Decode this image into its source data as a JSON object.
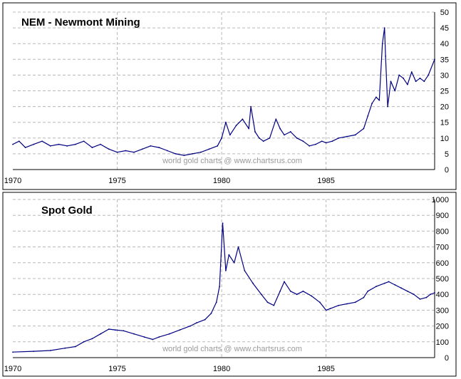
{
  "chart_data": [
    {
      "type": "line",
      "title": "NEM - Newmont Mining",
      "watermark": "world gold charts @ www.chartsrus.com",
      "x_ticks": [
        "1970",
        "1975",
        "1980",
        "1985"
      ],
      "y_ticks": [
        "0",
        "5",
        "10",
        "15",
        "20",
        "25",
        "30",
        "35",
        "40",
        "45",
        "50"
      ],
      "xlim": [
        1970.0,
        1990.2
      ],
      "ylim": [
        0,
        50
      ],
      "grid": true,
      "line_color": "#000080",
      "series": [
        {
          "x": [
            1970.0,
            1970.3,
            1970.6,
            1971.0,
            1971.4,
            1971.8,
            1972.2,
            1972.6,
            1973.0,
            1973.4,
            1973.8,
            1974.2,
            1974.6,
            1975.0,
            1975.4,
            1975.8,
            1976.2,
            1976.6,
            1977.0,
            1977.4,
            1977.8,
            1978.2,
            1978.6,
            1979.0,
            1979.4,
            1979.8,
            1980.0,
            1980.2,
            1980.4,
            1980.7,
            1981.0,
            1981.3,
            1981.4,
            1981.6,
            1981.8,
            1982.0,
            1982.3,
            1982.6,
            1982.8,
            1983.0,
            1983.3,
            1983.6,
            1983.9,
            1984.2,
            1984.5,
            1984.8,
            1985.0,
            1985.3,
            1985.6,
            1986.0,
            1986.4,
            1986.8,
            1987.0,
            1987.2,
            1987.4,
            1987.55,
            1987.7,
            1987.8,
            1987.85,
            1987.95,
            1988.1,
            1988.3,
            1988.5,
            1988.7,
            1988.9,
            1989.1,
            1989.3,
            1989.5,
            1989.7,
            1989.9,
            1990.2
          ],
          "y": [
            8,
            9,
            7,
            8,
            9,
            7.5,
            8,
            7.5,
            8,
            9,
            7,
            8,
            6.5,
            5.5,
            6,
            5.5,
            6.5,
            7.5,
            7,
            6,
            5,
            4.5,
            5,
            5.5,
            6.5,
            7.5,
            10,
            15,
            11,
            14,
            16,
            13,
            20,
            12,
            10,
            9,
            10,
            16,
            13,
            11,
            12,
            10,
            9,
            7.5,
            8,
            9,
            8.5,
            9,
            10,
            10.5,
            11,
            13,
            17,
            21,
            23,
            22,
            40,
            45,
            36,
            20,
            28,
            25,
            30,
            29,
            27,
            31,
            28,
            29,
            28,
            30,
            35
          ]
        }
      ]
    },
    {
      "type": "line",
      "title": "Spot Gold",
      "watermark": "world gold charts @ www.chartsrus.com",
      "x_ticks": [
        "1970",
        "1975",
        "1980",
        "1985"
      ],
      "y_ticks": [
        "0",
        "100",
        "200",
        "300",
        "400",
        "500",
        "600",
        "700",
        "800",
        "900",
        "1000"
      ],
      "xlim": [
        1970.0,
        1990.2
      ],
      "ylim": [
        0,
        1000
      ],
      "grid": true,
      "line_color": "#000080",
      "series": [
        {
          "x": [
            1970.0,
            1971.0,
            1971.8,
            1972.5,
            1973.0,
            1973.4,
            1973.8,
            1974.2,
            1974.6,
            1974.9,
            1975.3,
            1975.8,
            1976.3,
            1976.7,
            1977.0,
            1977.5,
            1978.0,
            1978.5,
            1978.8,
            1979.2,
            1979.5,
            1979.75,
            1979.9,
            1980.05,
            1980.2,
            1980.35,
            1980.6,
            1980.8,
            1981.1,
            1981.5,
            1981.9,
            1982.2,
            1982.5,
            1982.8,
            1983.0,
            1983.3,
            1983.6,
            1983.9,
            1984.3,
            1984.7,
            1985.0,
            1985.2,
            1985.6,
            1986.0,
            1986.4,
            1986.8,
            1987.0,
            1987.4,
            1987.8,
            1988.0,
            1988.3,
            1988.6,
            1988.9,
            1989.2,
            1989.5,
            1989.8,
            1990.0,
            1990.2
          ],
          "y": [
            35,
            40,
            45,
            60,
            70,
            100,
            120,
            150,
            180,
            175,
            170,
            150,
            130,
            115,
            130,
            150,
            175,
            200,
            220,
            240,
            280,
            350,
            450,
            850,
            550,
            650,
            600,
            700,
            550,
            470,
            400,
            350,
            330,
            420,
            480,
            420,
            400,
            420,
            390,
            350,
            300,
            310,
            330,
            340,
            350,
            380,
            420,
            450,
            470,
            480,
            460,
            440,
            420,
            400,
            370,
            380,
            400,
            410
          ]
        }
      ]
    }
  ]
}
